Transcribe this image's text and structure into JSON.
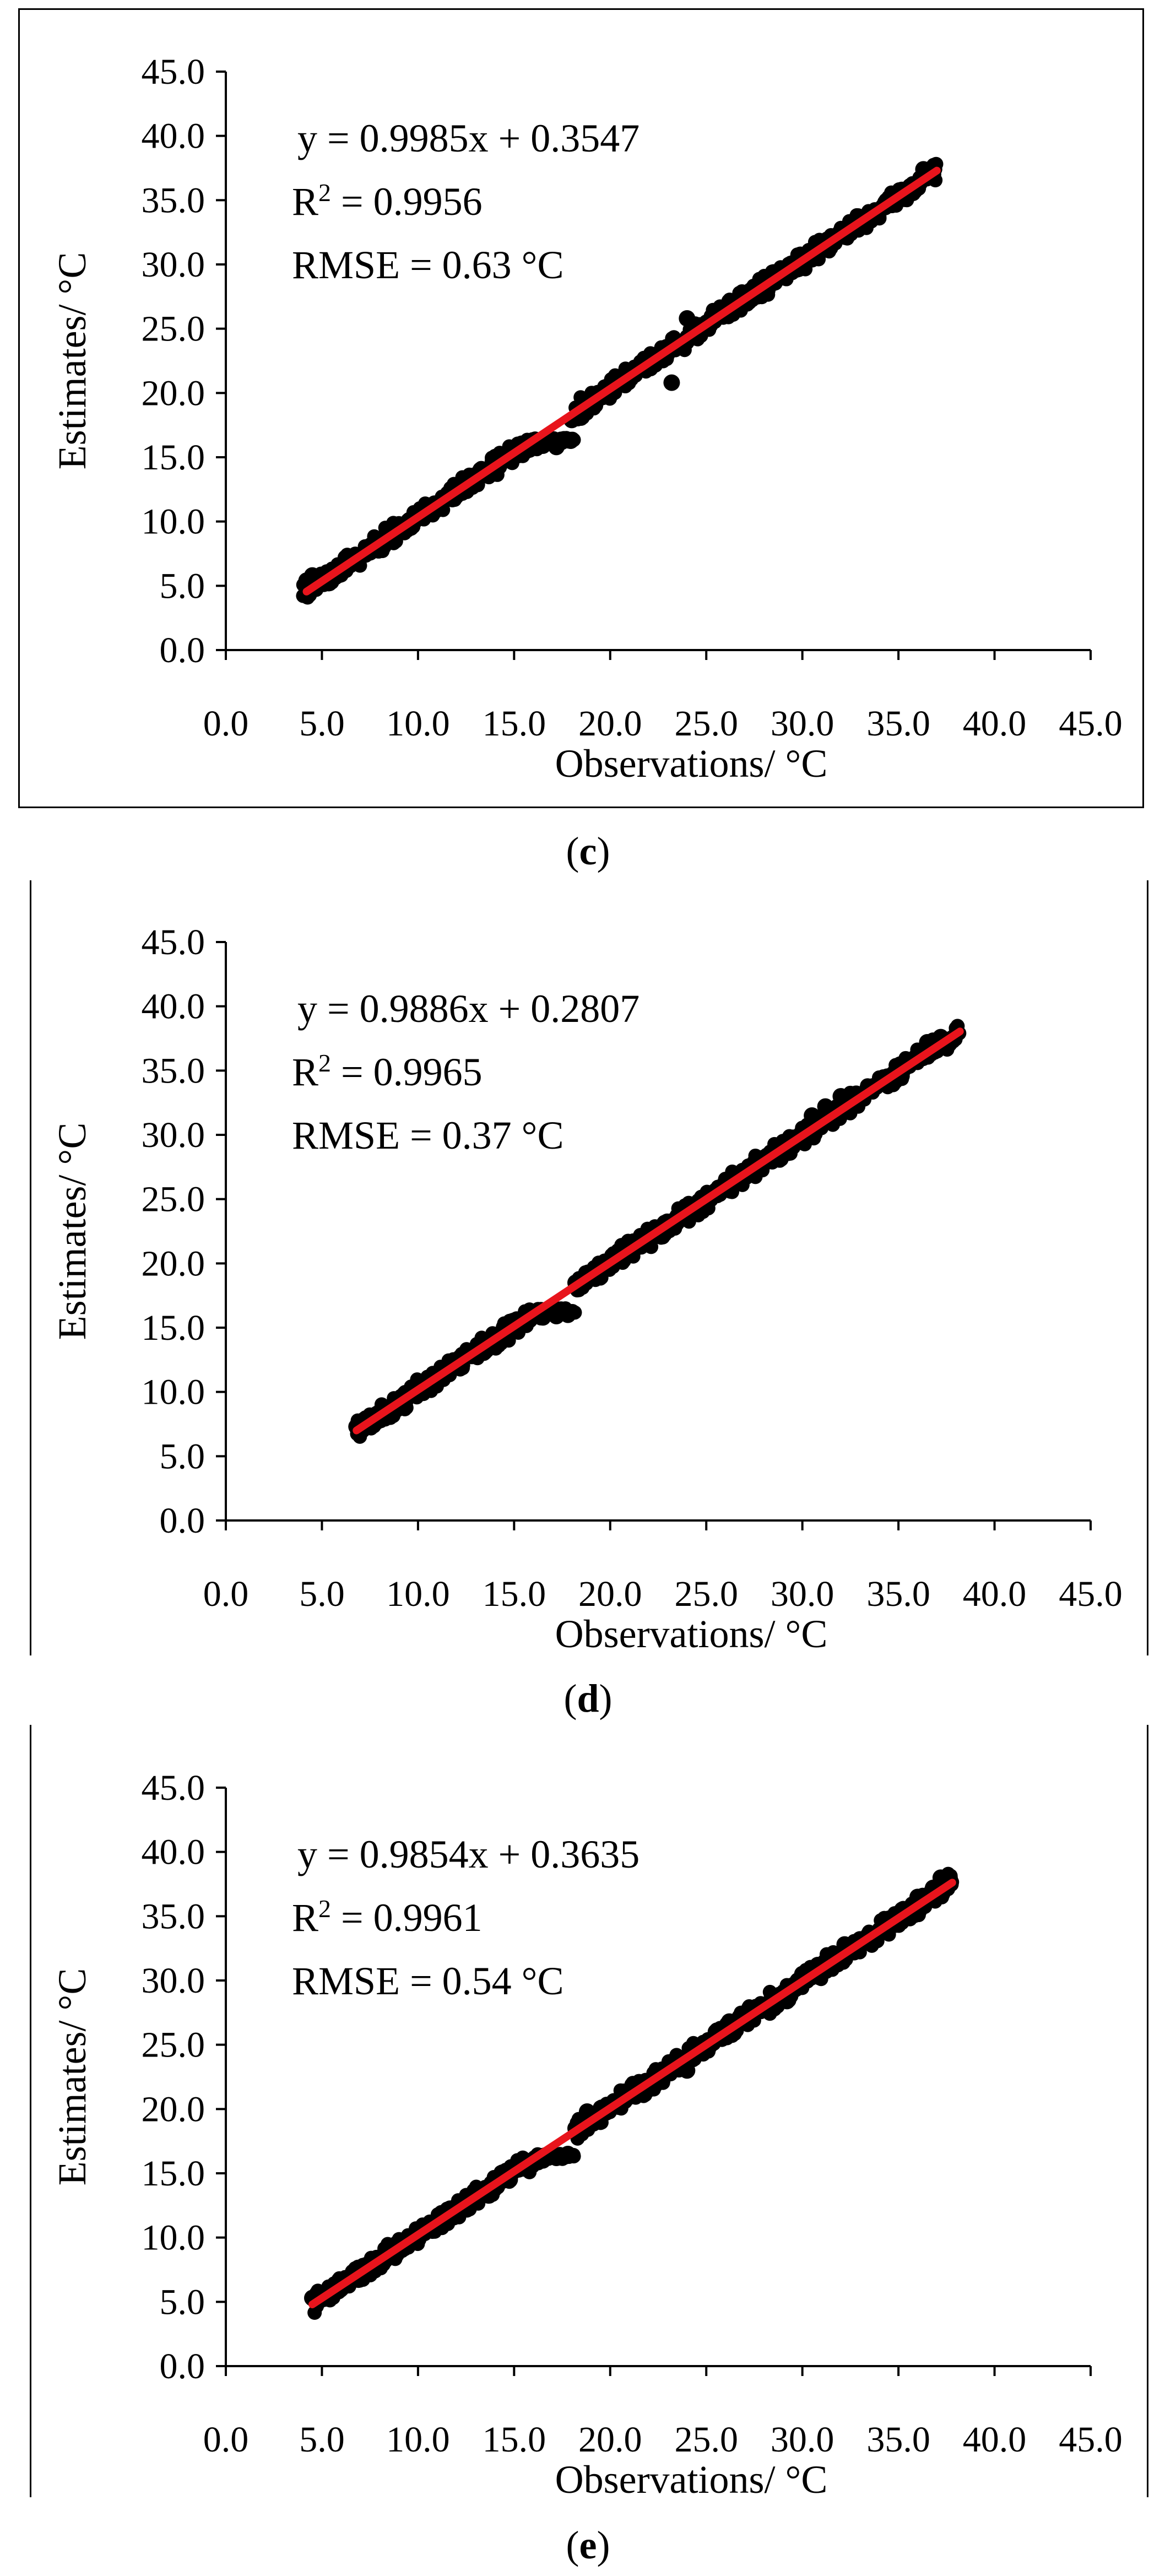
{
  "chart_data": [
    {
      "type": "scatter",
      "panel": "c",
      "caption": "(c)",
      "xlabel": "Observations/ °C",
      "ylabel": "Estimates/ °C",
      "xlim": [
        0,
        45
      ],
      "ylim": [
        0,
        45
      ],
      "xticks": [
        "0.0",
        "5.0",
        "10.0",
        "15.0",
        "20.0",
        "25.0",
        "30.0",
        "35.0",
        "40.0",
        "45.0"
      ],
      "yticks": [
        "0.0",
        "5.0",
        "10.0",
        "15.0",
        "20.0",
        "25.0",
        "30.0",
        "35.0",
        "40.0",
        "45.0"
      ],
      "grid": false,
      "fit": {
        "slope": 0.9985,
        "intercept": 0.3547,
        "x_range": [
          4.2,
          37.0
        ],
        "color": "#e8141c"
      },
      "annotations": [
        "y = 0.9985x + 0.3547",
        "R² = 0.9956",
        "RMSE = 0.63 °C"
      ],
      "x_range": [
        4.0,
        37.0
      ],
      "point_color": "#000000",
      "points": [
        [
          4.2,
          5.4
        ],
        [
          4.5,
          5.8
        ],
        [
          5.2,
          5.6
        ],
        [
          6.0,
          6.5
        ],
        [
          6.8,
          7.2
        ],
        [
          7.5,
          7.6
        ],
        [
          8.2,
          8.3
        ],
        [
          9.0,
          9.2
        ],
        [
          9.8,
          10.0
        ],
        [
          10.5,
          10.6
        ],
        [
          11.2,
          11.4
        ],
        [
          12.0,
          12.2
        ],
        [
          12.8,
          13.0
        ],
        [
          13.5,
          13.8
        ],
        [
          14.2,
          14.4
        ],
        [
          15.0,
          15.2
        ],
        [
          15.8,
          15.6
        ],
        [
          16.5,
          15.9
        ],
        [
          17.2,
          15.8
        ],
        [
          17.6,
          16.4
        ],
        [
          18.0,
          17.9
        ],
        [
          18.5,
          18.8
        ],
        [
          19.0,
          19.5
        ],
        [
          19.8,
          20.0
        ],
        [
          20.5,
          20.8
        ],
        [
          21.2,
          21.4
        ],
        [
          22.0,
          22.3
        ],
        [
          22.8,
          23.0
        ],
        [
          23.2,
          20.8
        ],
        [
          23.5,
          24.0
        ],
        [
          24.0,
          25.8
        ],
        [
          24.5,
          24.6
        ],
        [
          25.2,
          25.3
        ],
        [
          26.0,
          26.2
        ],
        [
          26.8,
          27.2
        ],
        [
          27.5,
          27.6
        ],
        [
          28.2,
          28.5
        ],
        [
          29.0,
          29.3
        ],
        [
          29.8,
          30.0
        ],
        [
          30.5,
          30.4
        ],
        [
          31.2,
          31.6
        ],
        [
          32.0,
          32.2
        ],
        [
          32.8,
          33.0
        ],
        [
          33.5,
          33.8
        ],
        [
          34.2,
          34.5
        ],
        [
          35.0,
          35.3
        ],
        [
          35.8,
          36.2
        ],
        [
          36.3,
          37.4
        ],
        [
          36.8,
          37.0
        ]
      ]
    },
    {
      "type": "scatter",
      "panel": "d",
      "caption": "(d)",
      "xlabel": "Observations/ °C",
      "ylabel": "Estimates/ °C",
      "xlim": [
        0,
        45
      ],
      "ylim": [
        0,
        45
      ],
      "xticks": [
        "0.0",
        "5.0",
        "10.0",
        "15.0",
        "20.0",
        "25.0",
        "30.0",
        "35.0",
        "40.0",
        "45.0"
      ],
      "yticks": [
        "0.0",
        "5.0",
        "10.0",
        "15.0",
        "20.0",
        "25.0",
        "30.0",
        "35.0",
        "40.0",
        "45.0"
      ],
      "grid": false,
      "fit": {
        "slope": 0.9886,
        "intercept": 0.2807,
        "x_range": [
          6.8,
          38.2
        ],
        "color": "#e8141c"
      },
      "annotations": [
        "y = 0.9886x + 0.2807",
        "R² = 0.9965",
        "RMSE = 0.37 °C"
      ],
      "x_range": [
        6.8,
        38.2
      ],
      "point_color": "#000000",
      "points": [
        [
          6.8,
          7.3
        ],
        [
          7.5,
          7.6
        ],
        [
          8.2,
          8.4
        ],
        [
          9.0,
          9.1
        ],
        [
          9.8,
          9.8
        ],
        [
          10.5,
          10.6
        ],
        [
          11.2,
          11.2
        ],
        [
          12.0,
          12.0
        ],
        [
          12.8,
          12.8
        ],
        [
          13.5,
          13.6
        ],
        [
          14.2,
          14.4
        ],
        [
          15.0,
          15.0
        ],
        [
          15.8,
          15.6
        ],
        [
          16.5,
          15.8
        ],
        [
          17.2,
          15.9
        ],
        [
          17.8,
          16.0
        ],
        [
          18.2,
          18.5
        ],
        [
          18.8,
          19.0
        ],
        [
          19.5,
          19.6
        ],
        [
          20.2,
          20.2
        ],
        [
          21.0,
          21.0
        ],
        [
          21.8,
          21.8
        ],
        [
          22.5,
          22.5
        ],
        [
          23.2,
          23.2
        ],
        [
          24.0,
          24.0
        ],
        [
          24.8,
          24.8
        ],
        [
          25.5,
          25.4
        ],
        [
          26.2,
          26.0
        ],
        [
          27.0,
          26.8
        ],
        [
          27.8,
          27.4
        ],
        [
          28.5,
          28.2
        ],
        [
          29.2,
          28.8
        ],
        [
          30.0,
          30.2
        ],
        [
          30.5,
          31.5
        ],
        [
          31.2,
          32.2
        ],
        [
          32.0,
          33.0
        ],
        [
          32.8,
          33.2
        ],
        [
          33.5,
          33.5
        ],
        [
          34.2,
          34.2
        ],
        [
          35.0,
          35.0
        ],
        [
          35.8,
          35.8
        ],
        [
          36.5,
          37.2
        ],
        [
          37.2,
          37.6
        ],
        [
          38.0,
          37.8
        ]
      ]
    },
    {
      "type": "scatter",
      "panel": "e",
      "caption": "(e)",
      "xlabel": "Observations/ °C",
      "ylabel": "Estimates/ °C",
      "xlim": [
        0,
        45
      ],
      "ylim": [
        0,
        45
      ],
      "xticks": [
        "0.0",
        "5.0",
        "10.0",
        "15.0",
        "20.0",
        "25.0",
        "30.0",
        "35.0",
        "40.0",
        "45.0"
      ],
      "yticks": [
        "0.0",
        "5.0",
        "10.0",
        "15.0",
        "20.0",
        "25.0",
        "30.0",
        "35.0",
        "40.0",
        "45.0"
      ],
      "grid": false,
      "fit": {
        "slope": 0.9854,
        "intercept": 0.3635,
        "x_range": [
          4.5,
          37.8
        ],
        "color": "#e8141c"
      },
      "annotations": [
        "y = 0.9854x + 0.3635",
        "R² = 0.9961",
        "RMSE = 0.54 °C"
      ],
      "x_range": [
        4.4,
        37.8
      ],
      "point_color": "#000000",
      "points": [
        [
          4.5,
          5.3
        ],
        [
          5.2,
          5.6
        ],
        [
          6.0,
          6.2
        ],
        [
          6.8,
          7.0
        ],
        [
          7.5,
          7.8
        ],
        [
          8.2,
          8.5
        ],
        [
          9.0,
          9.2
        ],
        [
          9.8,
          10.0
        ],
        [
          10.5,
          10.8
        ],
        [
          11.2,
          11.4
        ],
        [
          12.0,
          12.2
        ],
        [
          12.8,
          13.0
        ],
        [
          13.5,
          13.8
        ],
        [
          14.2,
          14.5
        ],
        [
          15.0,
          15.2
        ],
        [
          15.8,
          15.8
        ],
        [
          16.5,
          16.0
        ],
        [
          17.2,
          16.2
        ],
        [
          17.8,
          16.5
        ],
        [
          18.2,
          18.5
        ],
        [
          18.8,
          19.8
        ],
        [
          19.5,
          20.0
        ],
        [
          20.2,
          20.6
        ],
        [
          21.0,
          21.2
        ],
        [
          21.8,
          21.9
        ],
        [
          22.5,
          22.8
        ],
        [
          23.2,
          23.5
        ],
        [
          24.0,
          23.0
        ],
        [
          24.8,
          25.0
        ],
        [
          25.5,
          26.0
        ],
        [
          26.2,
          26.8
        ],
        [
          27.0,
          27.2
        ],
        [
          27.8,
          28.0
        ],
        [
          28.5,
          28.6
        ],
        [
          29.2,
          28.4
        ],
        [
          30.0,
          30.5
        ],
        [
          30.8,
          31.2
        ],
        [
          31.5,
          31.8
        ],
        [
          32.2,
          32.8
        ],
        [
          33.0,
          33.2
        ],
        [
          33.8,
          33.6
        ],
        [
          34.5,
          34.8
        ],
        [
          35.2,
          35.5
        ],
        [
          36.0,
          36.5
        ],
        [
          36.8,
          37.2
        ],
        [
          37.2,
          38.0
        ]
      ]
    }
  ]
}
